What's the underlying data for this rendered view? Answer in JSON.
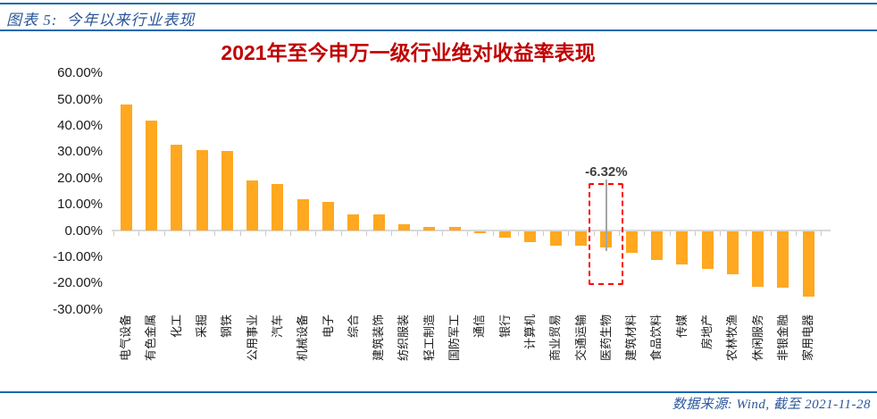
{
  "header": {
    "label": "图表 5:",
    "title": "今年以来行业表现"
  },
  "footer": {
    "source_text": "数据来源: Wind,  截至 2021-11-28"
  },
  "colors": {
    "accent_blue": "#1769AE",
    "caption_text": "#2B579A",
    "title_red": "#C00000",
    "bar_orange": "#FFA820",
    "axis_gray": "#D9D9D9",
    "annotation_box_red": "#FF0000",
    "annotation_text": "#3F3F3F",
    "leader_line_gray": "#A6A6A6"
  },
  "chart_data": {
    "type": "bar",
    "title": "2021年至今申万一级行业绝对收益率表现",
    "xlabel": "",
    "ylabel": "",
    "ylim": [
      -30,
      60
    ],
    "grid": false,
    "legend": "none",
    "bar_color": "#FFA820",
    "categories": [
      "电气设备",
      "有色金属",
      "化工",
      "采掘",
      "钢铁",
      "公用事业",
      "汽车",
      "机械设备",
      "电子",
      "综合",
      "建筑装饰",
      "纺织服装",
      "轻工制造",
      "国防军工",
      "通信",
      "银行",
      "计算机",
      "商业贸易",
      "交通运输",
      "医药生物",
      "建筑材料",
      "食品饮料",
      "传媒",
      "房地产",
      "农林牧渔",
      "休闲服务",
      "非银金融",
      "家用电器"
    ],
    "values": [
      48.2,
      42.0,
      32.7,
      30.8,
      30.5,
      19.2,
      18.0,
      12.2,
      11.2,
      6.4,
      6.3,
      2.5,
      1.4,
      1.6,
      -0.7,
      -2.6,
      -4.3,
      -5.6,
      -5.7,
      -6.32,
      -8.5,
      -11.2,
      -12.9,
      -14.6,
      -16.6,
      -21.2,
      -21.5,
      -25.0
    ],
    "y_axis": {
      "tick_values": [
        60,
        50,
        40,
        30,
        20,
        10,
        0,
        -10,
        -20,
        -30
      ],
      "tick_labels": [
        "60.00%",
        "50.00%",
        "40.00%",
        "30.00%",
        "20.00%",
        "10.00%",
        "0.00%",
        "-10.00%",
        "-20.00%",
        "-30.00%"
      ]
    },
    "annotation": {
      "text": "-6.32%",
      "category": "医药生物",
      "value": -6.32
    }
  }
}
